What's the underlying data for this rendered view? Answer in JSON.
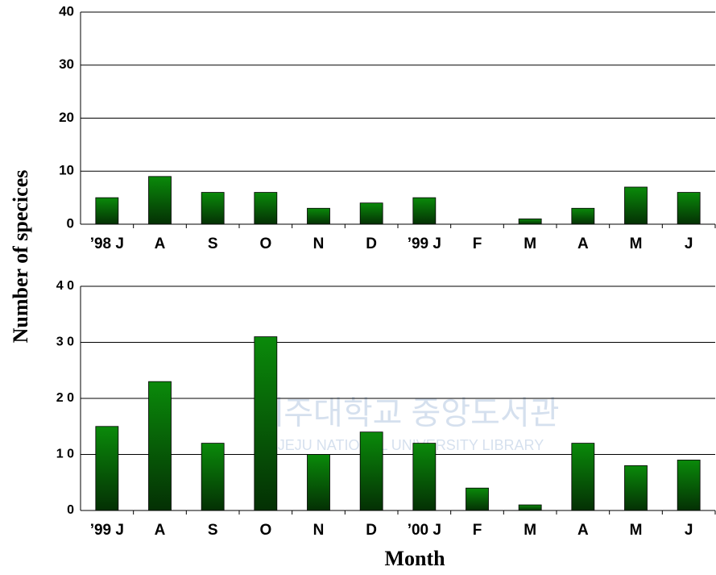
{
  "watermark": {
    "korean": "제주대학교 중앙도서관",
    "english": "JEJU NATIONAL UNIVERSITY LIBRARY"
  },
  "chart_data": [
    {
      "type": "bar",
      "y_label": "Number of specices",
      "categories": [
        "’98 J",
        "A",
        "S",
        "O",
        "N",
        "D",
        "’99 J",
        "F",
        "M",
        "A",
        "M",
        "J"
      ],
      "values": [
        5,
        9,
        6,
        6,
        3,
        4,
        5,
        0,
        1,
        3,
        7,
        6
      ],
      "color": "#0a8a0a",
      "ylim": [
        0,
        40
      ],
      "yticks": [
        0,
        10,
        20,
        30,
        40
      ],
      "grid": true,
      "tick_style": "normal"
    },
    {
      "type": "bar",
      "x_label": "Month",
      "categories": [
        "’99 J",
        "A",
        "S",
        "O",
        "N",
        "D",
        "’00 J",
        "F",
        "M",
        "A",
        "M",
        "J"
      ],
      "values": [
        15,
        23,
        12,
        31,
        10,
        14,
        12,
        4,
        1,
        12,
        8,
        9
      ],
      "color": "#0a8a0a",
      "ylim": [
        0,
        40
      ],
      "yticks": [
        0,
        10,
        20,
        30,
        40
      ],
      "grid": true,
      "tick_style": "spaced"
    }
  ]
}
